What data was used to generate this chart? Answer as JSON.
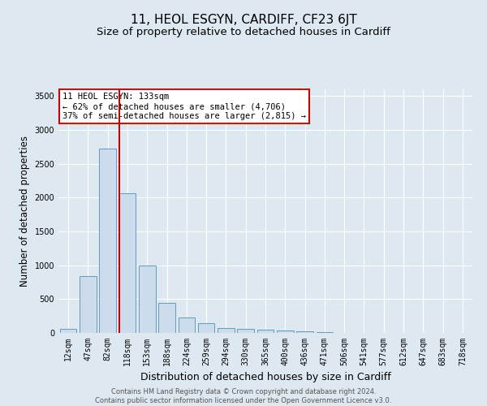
{
  "title": "11, HEOL ESGYN, CARDIFF, CF23 6JT",
  "subtitle": "Size of property relative to detached houses in Cardiff",
  "xlabel": "Distribution of detached houses by size in Cardiff",
  "ylabel": "Number of detached properties",
  "footer_line1": "Contains HM Land Registry data © Crown copyright and database right 2024.",
  "footer_line2": "Contains public sector information licensed under the Open Government Licence v3.0.",
  "bin_labels": [
    "12sqm",
    "47sqm",
    "82sqm",
    "118sqm",
    "153sqm",
    "188sqm",
    "224sqm",
    "259sqm",
    "294sqm",
    "330sqm",
    "365sqm",
    "400sqm",
    "436sqm",
    "471sqm",
    "506sqm",
    "541sqm",
    "577sqm",
    "612sqm",
    "647sqm",
    "683sqm",
    "718sqm"
  ],
  "bar_values": [
    60,
    840,
    2720,
    2060,
    1000,
    450,
    230,
    145,
    70,
    55,
    50,
    35,
    25,
    10,
    5,
    3,
    2,
    1,
    1,
    0,
    0
  ],
  "bar_color": "#ccdcec",
  "bar_edge_color": "#6699bb",
  "vline_color": "#cc0000",
  "vline_x": 3.0,
  "annotation_text_line1": "11 HEOL ESGYN: 133sqm",
  "annotation_text_line2": "← 62% of detached houses are smaller (4,706)",
  "annotation_text_line3": "37% of semi-detached houses are larger (2,815) →",
  "annotation_box_color": "#cc0000",
  "ylim": [
    0,
    3600
  ],
  "yticks": [
    0,
    500,
    1000,
    1500,
    2000,
    2500,
    3000,
    3500
  ],
  "background_color": "#dde8f0",
  "plot_bg_color": "#dde8f0",
  "grid_color": "#ffffff",
  "title_fontsize": 11,
  "subtitle_fontsize": 9.5,
  "ylabel_fontsize": 8.5,
  "xlabel_fontsize": 9,
  "tick_fontsize": 7,
  "annotation_fontsize": 7.5,
  "footer_fontsize": 6
}
